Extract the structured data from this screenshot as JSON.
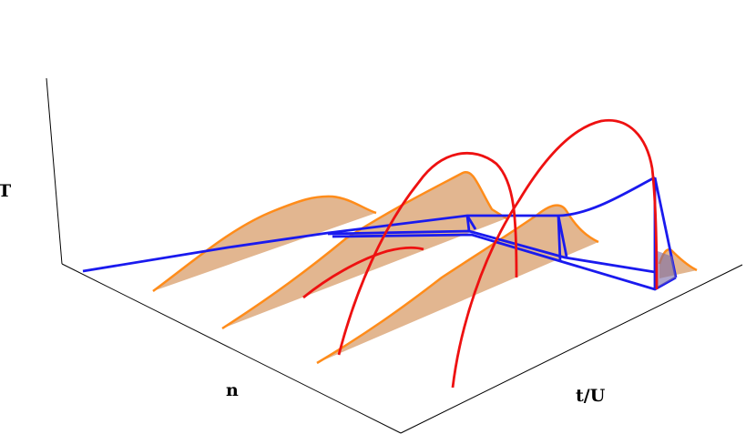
{
  "axes": {
    "vertical_label": "T",
    "left_label": "n",
    "right_label": "t/U"
  },
  "colors": {
    "surface_fill": "#e2b690",
    "surface_edge": "#ff8c1a",
    "blue_curve": "#1a1aee",
    "red_curve": "#ee1111",
    "overlap_fill": "#7a6aa6",
    "axis": "#000000"
  }
}
